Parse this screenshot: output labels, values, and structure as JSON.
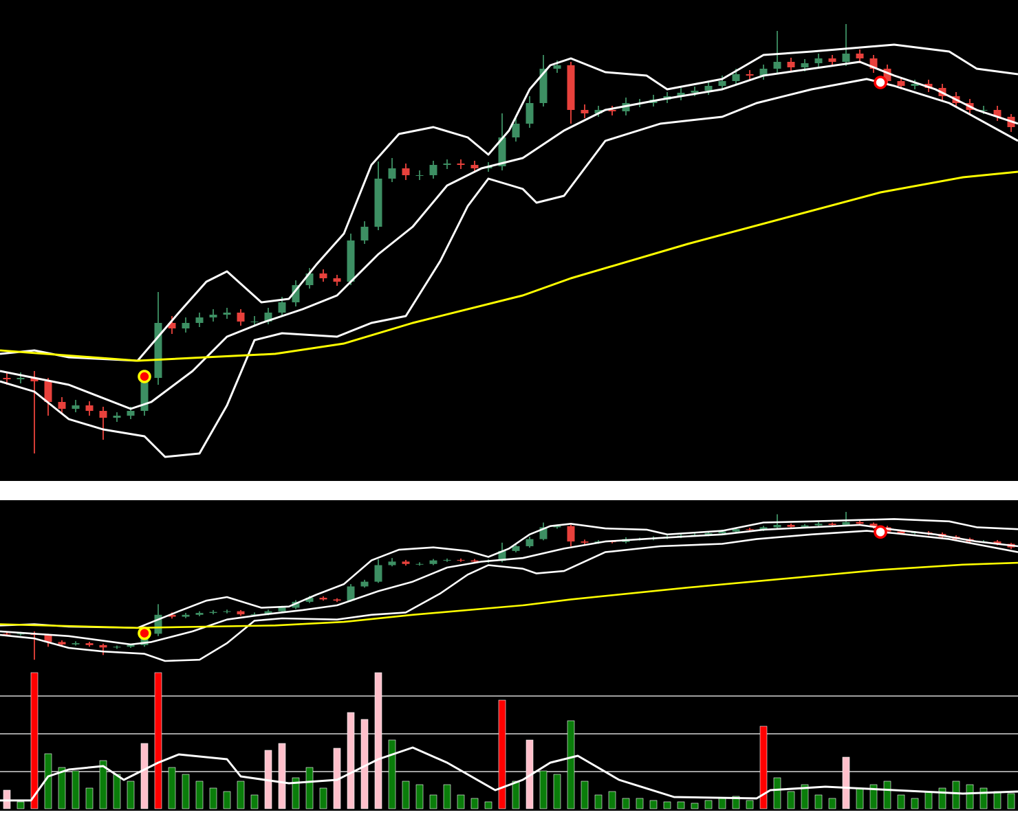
{
  "chart_data": {
    "type": "candlestick",
    "xlim": [
      -0.5,
      73.5
    ],
    "ylim": [
      0,
      700
    ],
    "up_color": "#3d8f63",
    "down_color": "#e8413c",
    "open": [
      150,
      148,
      150,
      145,
      115,
      105,
      110,
      102,
      92,
      95,
      102,
      150,
      230,
      222,
      230,
      238,
      242,
      245,
      232,
      232,
      245,
      260,
      285,
      302,
      295,
      290,
      350,
      370,
      440,
      455,
      445,
      445,
      460,
      462,
      460,
      455,
      458,
      500,
      520,
      550,
      600,
      605,
      540,
      535,
      540,
      538,
      550,
      550,
      555,
      560,
      565,
      568,
      575,
      582,
      592,
      590,
      600,
      610,
      602,
      608,
      615,
      610,
      622,
      615,
      600,
      582,
      575,
      578,
      572,
      560,
      550,
      540,
      540,
      530
    ],
    "high": [
      158,
      158,
      160,
      150,
      122,
      118,
      116,
      108,
      100,
      108,
      160,
      275,
      240,
      238,
      245,
      250,
      252,
      250,
      240,
      252,
      268,
      292,
      310,
      308,
      300,
      360,
      378,
      465,
      470,
      462,
      452,
      466,
      468,
      468,
      466,
      464,
      535,
      530,
      560,
      620,
      612,
      610,
      548,
      546,
      546,
      558,
      556,
      562,
      566,
      572,
      574,
      582,
      590,
      600,
      598,
      606,
      655,
      616,
      614,
      622,
      620,
      665,
      628,
      620,
      606,
      588,
      584,
      584,
      578,
      566,
      556,
      546,
      546,
      534
    ],
    "low": [
      140,
      142,
      40,
      95,
      98,
      100,
      95,
      60,
      86,
      90,
      95,
      140,
      214,
      216,
      224,
      232,
      236,
      226,
      226,
      228,
      240,
      254,
      280,
      290,
      284,
      285,
      345,
      365,
      435,
      438,
      438,
      440,
      454,
      454,
      450,
      450,
      452,
      494,
      514,
      545,
      594,
      520,
      528,
      530,
      532,
      532,
      544,
      545,
      550,
      554,
      560,
      562,
      570,
      576,
      584,
      584,
      594,
      596,
      596,
      602,
      604,
      604,
      608,
      594,
      576,
      570,
      570,
      566,
      554,
      544,
      534,
      534,
      524,
      508
    ],
    "close": [
      148,
      150,
      145,
      115,
      105,
      110,
      102,
      92,
      95,
      102,
      150,
      230,
      222,
      230,
      238,
      242,
      245,
      232,
      232,
      245,
      260,
      285,
      302,
      295,
      290,
      350,
      370,
      440,
      455,
      445,
      445,
      460,
      462,
      460,
      455,
      458,
      500,
      520,
      550,
      600,
      605,
      540,
      535,
      540,
      538,
      550,
      550,
      555,
      560,
      565,
      568,
      575,
      582,
      592,
      590,
      600,
      610,
      602,
      608,
      615,
      610,
      622,
      615,
      600,
      582,
      575,
      578,
      572,
      560,
      550,
      540,
      540,
      530,
      515
    ],
    "lines": [
      {
        "color": "#ffffff",
        "x": [
          -0.5,
          2,
          4.5,
          9.5,
          11,
          12.5,
          14.5,
          16,
          18.5,
          20.5,
          22.5,
          24.5,
          26.5,
          28.5,
          31,
          33.5,
          35,
          36.5,
          38,
          39.5,
          41,
          43.5,
          46.5,
          48,
          52,
          55,
          58.5,
          61.5,
          64.5,
          68.5,
          70.5,
          73.5
        ],
        "values": [
          185,
          190,
          180,
          175,
          210,
          245,
          290,
          305,
          260,
          265,
          315,
          360,
          460,
          505,
          515,
          500,
          475,
          510,
          570,
          605,
          615,
          595,
          590,
          570,
          585,
          620,
          625,
          630,
          635,
          625,
          600,
          592
        ]
      },
      {
        "color": "#ffffff",
        "x": [
          -0.5,
          4.5,
          9,
          10.5,
          13.5,
          16,
          18.5,
          21.5,
          24,
          27,
          29.5,
          32,
          34.5,
          37.5,
          40.5,
          43.5,
          47.5,
          52,
          55,
          58.5,
          62,
          64.5,
          67.5,
          70.5,
          73.5
        ],
        "values": [
          160,
          140,
          105,
          115,
          160,
          210,
          230,
          250,
          270,
          330,
          370,
          430,
          455,
          470,
          510,
          540,
          555,
          570,
          590,
          600,
          610,
          590,
          570,
          540,
          520
        ]
      },
      {
        "color": "#ffffff",
        "x": [
          -0.5,
          2,
          4.5,
          7,
          10,
          11.5,
          14,
          16,
          18,
          20,
          24,
          26.5,
          29,
          31.5,
          33.5,
          35,
          37.5,
          38.5,
          40.5,
          43.5,
          47.5,
          52,
          54.5,
          58.5,
          62.5,
          64.5,
          68.5,
          73.5
        ],
        "values": [
          145,
          130,
          90,
          75,
          65,
          35,
          40,
          110,
          205,
          215,
          210,
          230,
          240,
          320,
          400,
          440,
          425,
          405,
          415,
          495,
          520,
          530,
          550,
          570,
          585,
          575,
          550,
          495
        ]
      },
      {
        "color": "#ffff00",
        "x": [
          -0.5,
          9.5,
          19.5,
          24.5,
          29.5,
          37.5,
          41,
          49.5,
          63.5,
          69.5,
          73.5
        ],
        "values": [
          190,
          175,
          185,
          200,
          230,
          270,
          295,
          345,
          420,
          442,
          450
        ]
      }
    ],
    "signals": [
      {
        "x": 10,
        "value": 152,
        "color": "#ff0000",
        "ring": "#ffff00"
      },
      {
        "x": 63.5,
        "value": 580,
        "color": "#ffffff",
        "ring": "#ff0000"
      }
    ],
    "volume": {
      "ylim": [
        0,
        200
      ],
      "yticks": [
        54,
        109,
        164
      ],
      "grid": true,
      "values": [
        27,
        10,
        198,
        80,
        60,
        55,
        30,
        70,
        50,
        40,
        95,
        198,
        60,
        50,
        40,
        30,
        25,
        40,
        20,
        85,
        95,
        45,
        60,
        30,
        88,
        140,
        130,
        198,
        100,
        40,
        35,
        20,
        35,
        20,
        15,
        10,
        158,
        40,
        100,
        55,
        50,
        128,
        40,
        20,
        25,
        15,
        15,
        12,
        10,
        10,
        8,
        12,
        15,
        18,
        12,
        120,
        45,
        25,
        35,
        20,
        15,
        75,
        30,
        35,
        40,
        20,
        15,
        25,
        30,
        40,
        35,
        30,
        25,
        22
      ],
      "colors": [
        "#ffc0cb",
        "#0a7d0a",
        "#ff0000",
        "#0a7d0a",
        "#0a7d0a",
        "#0a7d0a",
        "#0a7d0a",
        "#0a7d0a",
        "#0a7d0a",
        "#0a7d0a",
        "#ffc0cb",
        "#ff0000",
        "#0a7d0a",
        "#0a7d0a",
        "#0a7d0a",
        "#0a7d0a",
        "#0a7d0a",
        "#0a7d0a",
        "#0a7d0a",
        "#ffc0cb",
        "#ffc0cb",
        "#0a7d0a",
        "#0a7d0a",
        "#0a7d0a",
        "#ffc0cb",
        "#ffc0cb",
        "#ffc0cb",
        "#ffc0cb",
        "#0a7d0a",
        "#0a7d0a",
        "#0a7d0a",
        "#0a7d0a",
        "#0a7d0a",
        "#0a7d0a",
        "#0a7d0a",
        "#0a7d0a",
        "#ff0000",
        "#0a7d0a",
        "#ffc0cb",
        "#0a7d0a",
        "#0a7d0a",
        "#0a7d0a",
        "#0a7d0a",
        "#0a7d0a",
        "#0a7d0a",
        "#0a7d0a",
        "#0a7d0a",
        "#0a7d0a",
        "#0a7d0a",
        "#0a7d0a",
        "#0a7d0a",
        "#0a7d0a",
        "#0a7d0a",
        "#0a7d0a",
        "#0a7d0a",
        "#ff0000",
        "#0a7d0a",
        "#0a7d0a",
        "#0a7d0a",
        "#0a7d0a",
        "#0a7d0a",
        "#ffc0cb",
        "#0a7d0a",
        "#0a7d0a",
        "#0a7d0a",
        "#0a7d0a",
        "#0a7d0a",
        "#0a7d0a",
        "#0a7d0a",
        "#0a7d0a",
        "#0a7d0a",
        "#0a7d0a",
        "#0a7d0a",
        "#0a7d0a"
      ],
      "line": {
        "color": "#ffffff",
        "x": [
          -0.5,
          1.75,
          3,
          4.5,
          7,
          8.5,
          9.5,
          11,
          12.5,
          16,
          17,
          20.5,
          24,
          27,
          29.5,
          32,
          35.5,
          37.5,
          39.5,
          41.5,
          44.5,
          48.5,
          54.5,
          55.5,
          59.5,
          64.5,
          69.5,
          73.5
        ],
        "values": [
          12,
          12,
          47,
          57,
          62,
          42,
          52,
          67,
          79,
          72,
          47,
          37,
          42,
          72,
          89,
          67,
          27,
          42,
          67,
          77,
          42,
          17,
          15,
          27,
          32,
          27,
          22,
          25
        ]
      }
    }
  }
}
